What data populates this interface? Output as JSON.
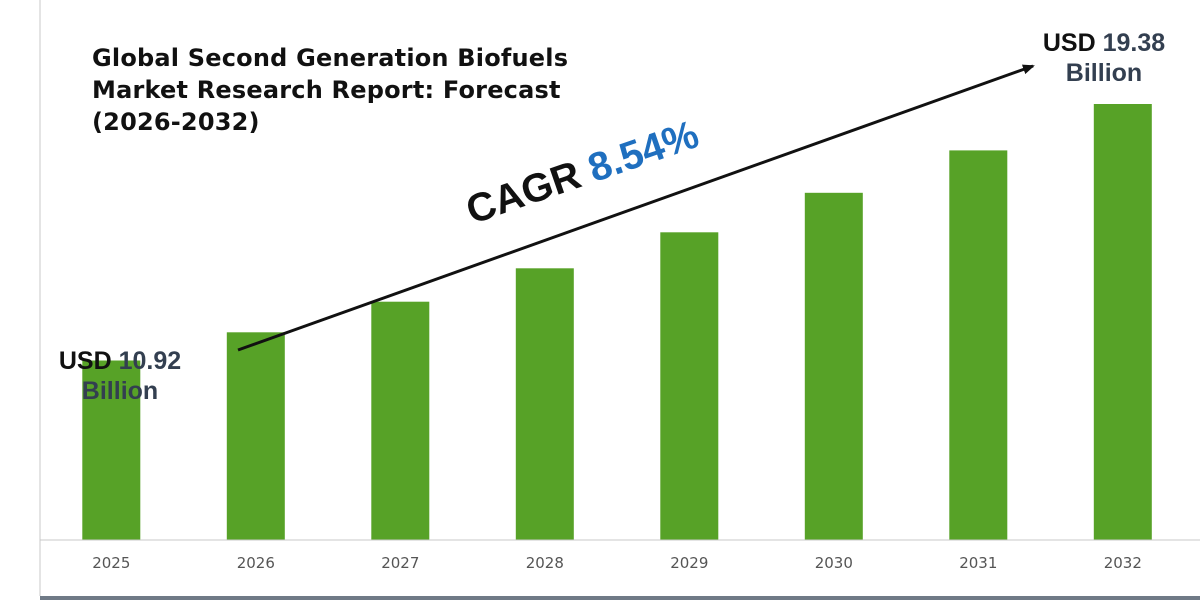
{
  "chart_data": {
    "type": "bar",
    "title_lines": [
      "Global Second Generation Biofuels",
      "Market Research Report: Forecast",
      "(2026-2032)"
    ],
    "categories": [
      "2025",
      "2026",
      "2027",
      "2028",
      "2029",
      "2030",
      "2031",
      "2032"
    ],
    "values": [
      10.92,
      11.85,
      12.86,
      13.96,
      15.15,
      16.45,
      17.85,
      19.38
    ],
    "ylabel": "",
    "xlabel": "",
    "ylim": [
      5.0,
      20.5
    ],
    "grid": false,
    "colors": {
      "bar": "#57a227",
      "axis": "#c8c8c8",
      "accent": "#1f6fbf",
      "value_text": "#333f50"
    },
    "annotations": {
      "start": {
        "prefix": "USD",
        "value": "10.92",
        "unit": "Billion"
      },
      "end": {
        "prefix": "USD",
        "value": "19.38",
        "unit": "Billion"
      },
      "cagr": {
        "label": "CAGR",
        "value": "8.54%"
      }
    }
  }
}
